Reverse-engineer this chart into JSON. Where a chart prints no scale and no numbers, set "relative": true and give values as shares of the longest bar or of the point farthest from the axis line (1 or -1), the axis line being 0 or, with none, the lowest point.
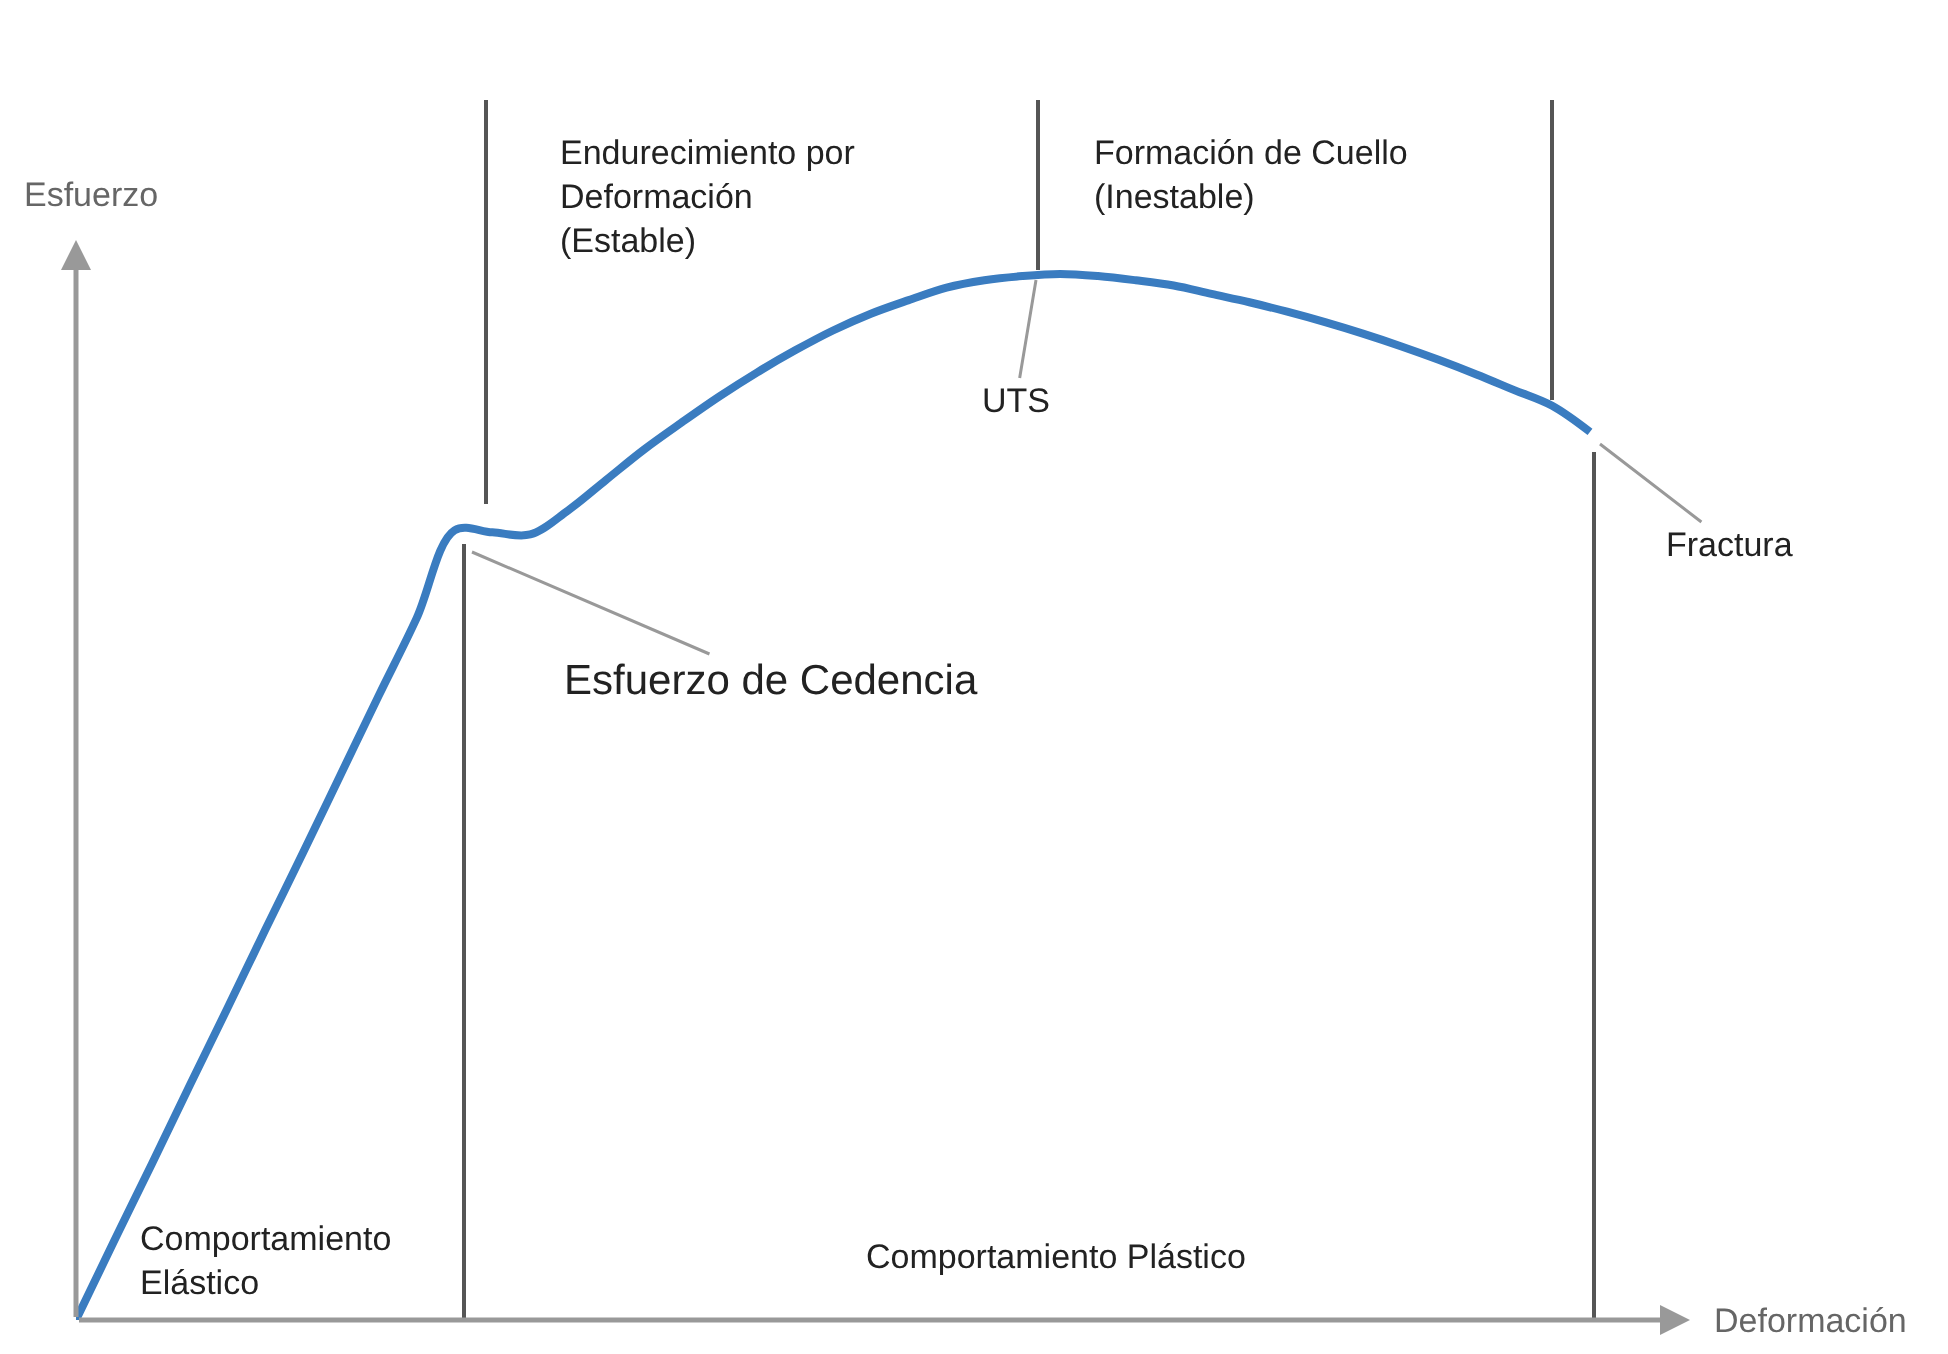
{
  "chart_data": {
    "type": "line",
    "relative": true,
    "xlabel": "Deformación",
    "ylabel": "Esfuerzo",
    "categories": [
      null,
      null,
      null,
      null,
      null,
      null,
      null,
      null,
      null,
      null,
      null,
      null,
      null,
      null,
      null,
      null,
      null,
      null,
      null,
      null,
      null,
      null,
      null,
      null,
      null,
      null,
      null,
      null,
      null,
      null,
      null,
      null,
      null,
      null,
      null,
      null,
      null,
      null,
      null,
      null,
      null,
      null,
      null
    ],
    "series": [
      {
        "color": "#3a7cc0",
        "values": [
          0,
          0.075,
          0.149,
          0.224,
          0.298,
          0.373,
          0.447,
          0.522,
          0.597,
          0.671,
          0.755,
          0.753,
          0.751,
          0.774,
          0.803,
          0.832,
          0.858,
          0.883,
          0.906,
          0.927,
          0.946,
          0.962,
          0.975,
          0.987,
          0.994,
          0.998,
          1.0,
          0.998,
          0.994,
          0.989,
          0.981,
          0.973,
          0.964,
          0.954,
          0.943,
          0.931,
          0.918,
          0.904,
          0.889,
          0.874,
          0.849,
          null,
          null
        ]
      }
    ],
    "annotations": [
      "Endurecimiento por\nDeformación\n(Estable)",
      "Formación de Cuello\n(Inestable)",
      "UTS",
      "Fractura",
      "Esfuerzo de Cedencia",
      "Comportamiento\nElástico",
      "Comportamiento Plástico"
    ],
    "marker": "none",
    "line_style": "solid"
  }
}
